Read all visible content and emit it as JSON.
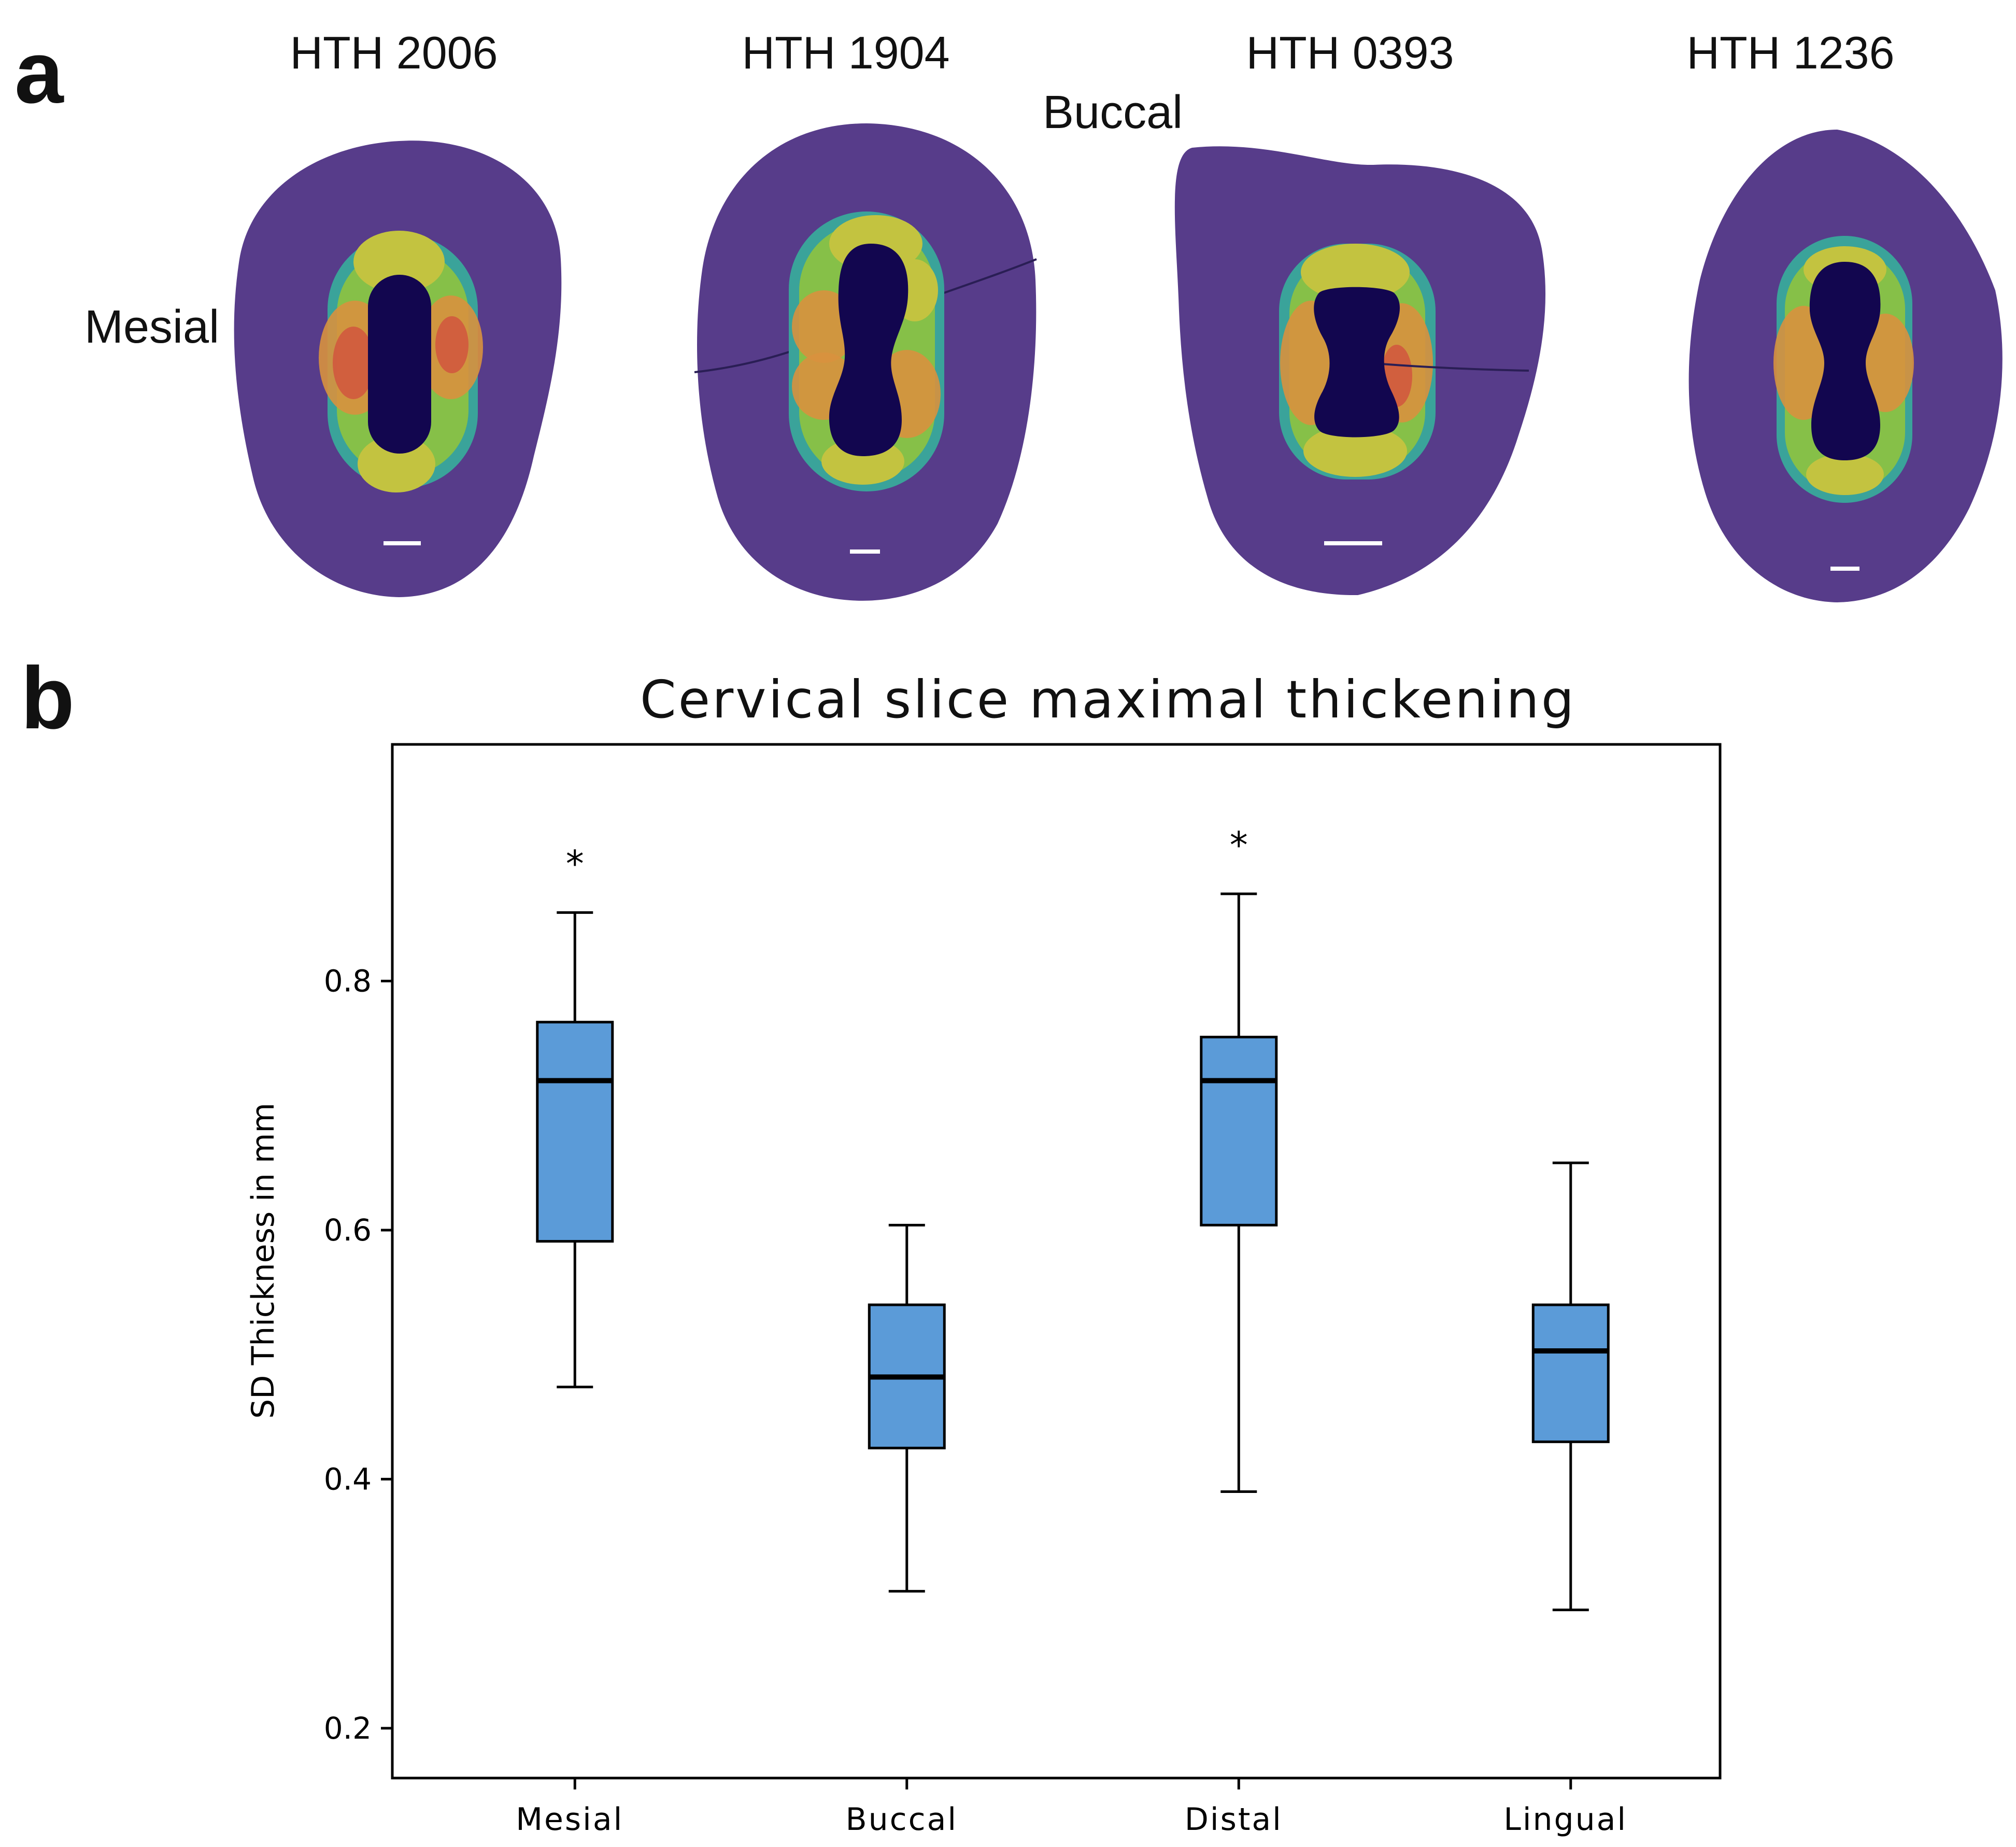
{
  "panel_a": {
    "letter": "a",
    "orientation_buccal": "Buccal",
    "orientation_mesial": "Mesial",
    "specimens": [
      {
        "label": "HTH 2006"
      },
      {
        "label": "HTH 1904"
      },
      {
        "label": "HTH 0393"
      },
      {
        "label": "HTH 1236"
      }
    ],
    "colors": {
      "tooth": "#573c8a",
      "pulp": "#12064f",
      "ring_outer": "#3aa39a",
      "ring_green": "#86c048",
      "ring_yellow": "#c3c340",
      "ring_orange": "#d8913e",
      "ring_red": "#d0593e",
      "scale_bar": "#ffffff"
    }
  },
  "panel_b": {
    "letter": "b",
    "colors": {
      "box_fill": "#5b9bd8",
      "stroke": "#000000"
    }
  },
  "chart_data": {
    "type": "box",
    "title": "Cervical slice maximal thickening",
    "ylabel": "SD Thickness in mm",
    "xlabel": "",
    "ylim": [
      0.16,
      0.99
    ],
    "yticks": [
      0.2,
      0.4,
      0.6,
      0.8
    ],
    "ytick_labels": [
      "0.2",
      "0.4",
      "0.6",
      "0.8"
    ],
    "categories": [
      "Mesial",
      "Buccal",
      "Distal",
      "Lingual"
    ],
    "boxes": [
      {
        "category": "Mesial",
        "whisker_low": 0.474,
        "q1": 0.591,
        "median": 0.72,
        "q3": 0.767,
        "whisker_high": 0.855,
        "annotation": "*"
      },
      {
        "category": "Buccal",
        "whisker_low": 0.31,
        "q1": 0.425,
        "median": 0.482,
        "q3": 0.54,
        "whisker_high": 0.604,
        "annotation": ""
      },
      {
        "category": "Distal",
        "whisker_low": 0.39,
        "q1": 0.604,
        "median": 0.72,
        "q3": 0.755,
        "whisker_high": 0.87,
        "annotation": "*"
      },
      {
        "category": "Lingual",
        "whisker_low": 0.295,
        "q1": 0.43,
        "median": 0.503,
        "q3": 0.54,
        "whisker_high": 0.654,
        "annotation": ""
      }
    ]
  }
}
